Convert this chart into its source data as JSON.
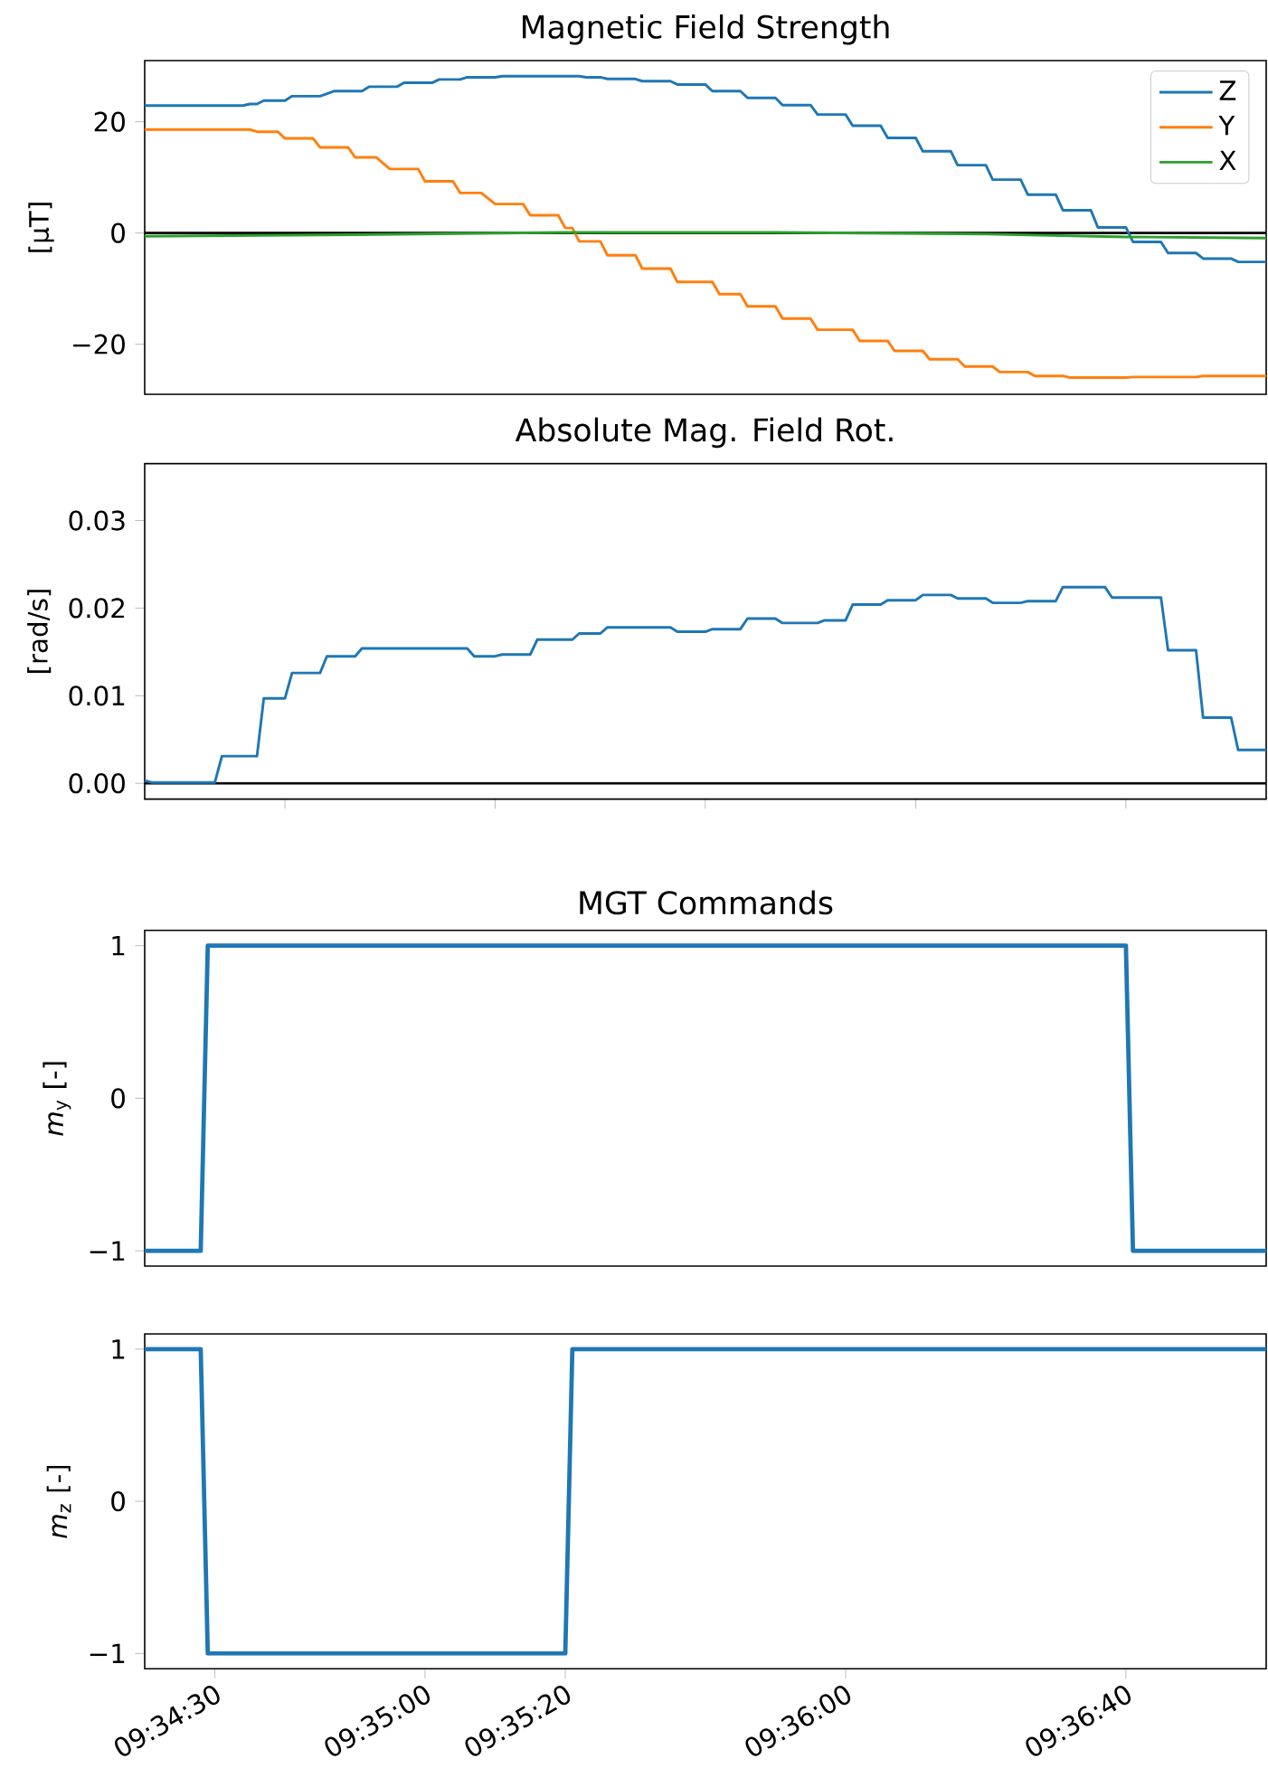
{
  "chart_data": [
    {
      "type": "line",
      "title": "Magnetic Field Strength",
      "ylabel": "[µT]",
      "xlim": [
        9.57222,
        9.61667
      ],
      "ylim": [
        -29,
        31
      ],
      "yticks": [
        {
          "value": -20,
          "label": "−20"
        },
        0,
        20
      ],
      "tick_labels": "y",
      "legend": "top right",
      "ref_lines": [
        {
          "axis": "y",
          "value": 0,
          "color": "#000000"
        }
      ],
      "series": [
        {
          "name": "Z",
          "color": "#1f77b4",
          "x": [
            9.57222,
            9.57611,
            9.57639,
            9.57667,
            9.57694,
            9.57778,
            9.57806,
            9.57917,
            9.57972,
            9.58083,
            9.58111,
            9.58222,
            9.5825,
            9.58361,
            9.58389,
            9.58472,
            9.585,
            9.58611,
            9.58639,
            9.58944,
            9.58972,
            9.59028,
            9.59056,
            9.59167,
            9.59194,
            9.59306,
            9.59333,
            9.59444,
            9.59472,
            9.59583,
            9.59611,
            9.59722,
            9.5975,
            9.59861,
            9.59889,
            9.6,
            9.60028,
            9.60139,
            9.60167,
            9.60278,
            9.60306,
            9.60417,
            9.60444,
            9.60556,
            9.60583,
            9.60694,
            9.60722,
            9.60833,
            9.60861,
            9.60972,
            9.61,
            9.61111,
            9.61139,
            9.6125,
            9.61278,
            9.61389,
            9.61417,
            9.61528,
            9.61556,
            9.61667
          ],
          "values": [
            22.9,
            22.9,
            23.2,
            23.2,
            23.8,
            23.8,
            24.6,
            24.6,
            25.5,
            25.5,
            26.3,
            26.3,
            27.0,
            27.0,
            27.6,
            27.6,
            28.0,
            28.0,
            28.2,
            28.2,
            28.0,
            28.0,
            27.7,
            27.7,
            27.3,
            27.3,
            26.7,
            26.7,
            25.5,
            25.5,
            24.3,
            24.3,
            23.0,
            23.0,
            21.3,
            21.3,
            19.3,
            19.3,
            17.1,
            17.1,
            14.7,
            14.7,
            12.2,
            12.2,
            9.6,
            9.6,
            6.9,
            6.9,
            4.1,
            4.1,
            1.0,
            1.0,
            -1.6,
            -1.6,
            -3.6,
            -3.6,
            -4.6,
            -4.6,
            -5.2,
            -5.2
          ]
        },
        {
          "name": "Y",
          "color": "#ff7f0e",
          "x": [
            9.57222,
            9.57639,
            9.57667,
            9.5775,
            9.57778,
            9.57889,
            9.57917,
            9.58028,
            9.58056,
            9.58139,
            9.58194,
            9.58306,
            9.58333,
            9.58444,
            9.58472,
            9.58556,
            9.58611,
            9.58722,
            9.5875,
            9.58861,
            9.58889,
            9.58917,
            9.58944,
            9.59028,
            9.59056,
            9.59167,
            9.59194,
            9.59306,
            9.59333,
            9.59472,
            9.595,
            9.59583,
            9.59611,
            9.59722,
            9.5975,
            9.59861,
            9.59889,
            9.60028,
            9.60056,
            9.60167,
            9.60194,
            9.60306,
            9.60333,
            9.60444,
            9.60472,
            9.60583,
            9.60611,
            9.60722,
            9.6075,
            9.60861,
            9.60889,
            9.61111,
            9.61139,
            9.61389,
            9.61417,
            9.61667
          ],
          "values": [
            18.6,
            18.6,
            18.2,
            18.2,
            17.0,
            17.0,
            15.4,
            15.4,
            13.6,
            13.6,
            11.5,
            11.5,
            9.3,
            9.3,
            7.2,
            7.2,
            5.2,
            5.2,
            3.2,
            3.2,
            0.9,
            0.9,
            -1.5,
            -1.5,
            -4.0,
            -4.0,
            -6.4,
            -6.4,
            -8.8,
            -8.8,
            -11.0,
            -11.0,
            -13.2,
            -13.2,
            -15.4,
            -15.4,
            -17.4,
            -17.4,
            -19.4,
            -19.4,
            -21.2,
            -21.2,
            -22.7,
            -22.7,
            -24.0,
            -24.0,
            -25.0,
            -25.0,
            -25.7,
            -25.7,
            -26.0,
            -26.0,
            -25.9,
            -25.9,
            -25.7,
            -25.7
          ]
        },
        {
          "name": "X",
          "color": "#2ca02c",
          "x": [
            9.57222,
            9.58056,
            9.58889,
            9.59722,
            9.60556,
            9.61111,
            9.61667
          ],
          "values": [
            -0.6,
            -0.3,
            0.1,
            0.1,
            -0.2,
            -0.7,
            -0.9
          ]
        }
      ]
    },
    {
      "type": "line",
      "title": "Absolute Mag. Field Rot.",
      "ylabel": "[rad/s]",
      "xlim": [
        9.57222,
        9.61667
      ],
      "ylim": [
        -0.0018,
        0.0365
      ],
      "xticks": [
        {
          "value": 9.57778,
          "label": null
        },
        {
          "value": 9.58611,
          "label": null
        },
        {
          "value": 9.59444,
          "label": null
        },
        {
          "value": 9.60278,
          "label": null
        },
        {
          "value": 9.61111,
          "label": null
        }
      ],
      "yticks": [
        {
          "value": 0,
          "label": "0.00"
        },
        0.01,
        0.02,
        0.03
      ],
      "tick_labels": "y",
      "ref_lines": [
        {
          "axis": "y",
          "value": 0,
          "color": "#000000"
        }
      ],
      "series": [
        {
          "color": "#1f77b4",
          "x": [
            9.57222,
            9.5725,
            9.575,
            9.57528,
            9.57667,
            9.57694,
            9.57778,
            9.57806,
            9.57917,
            9.57944,
            9.58056,
            9.58083,
            9.585,
            9.58528,
            9.58611,
            9.58639,
            9.5875,
            9.58778,
            9.58917,
            9.58944,
            9.59028,
            9.59056,
            9.59306,
            9.59333,
            9.59444,
            9.59472,
            9.59583,
            9.59611,
            9.59722,
            9.5975,
            9.59889,
            9.59917,
            9.6,
            9.60028,
            9.60139,
            9.60167,
            9.60278,
            9.60306,
            9.60417,
            9.60444,
            9.60556,
            9.60583,
            9.60694,
            9.60722,
            9.60833,
            9.60861,
            9.61028,
            9.61056,
            9.6125,
            9.61278,
            9.61389,
            9.61417,
            9.61528,
            9.61556,
            9.61667
          ],
          "values": [
            0.0003,
            0.0001,
            0.0001,
            0.0031,
            0.0031,
            0.0097,
            0.0097,
            0.0126,
            0.0126,
            0.0145,
            0.0145,
            0.0154,
            0.0154,
            0.0145,
            0.0145,
            0.0147,
            0.0147,
            0.0164,
            0.0164,
            0.0171,
            0.0171,
            0.0178,
            0.0178,
            0.0173,
            0.0173,
            0.0176,
            0.0176,
            0.0188,
            0.0188,
            0.0183,
            0.0183,
            0.0186,
            0.0186,
            0.0204,
            0.0204,
            0.0209,
            0.0209,
            0.0215,
            0.0215,
            0.0211,
            0.0211,
            0.0206,
            0.0206,
            0.0208,
            0.0208,
            0.0224,
            0.0224,
            0.0212,
            0.0212,
            0.0152,
            0.0152,
            0.0075,
            0.0075,
            0.0038,
            0.0038
          ]
        }
      ]
    },
    {
      "type": "line",
      "title": "MGT Commands",
      "ylabel": "*m*$_{y}$ [-]",
      "xlim": [
        9.57222,
        9.61667
      ],
      "ylim": [
        -1.1,
        1.1
      ],
      "yticks": [
        {
          "value": -1,
          "label": "−1"
        },
        0,
        1
      ],
      "tick_labels": "y",
      "series": [
        {
          "color": "#1f77b4",
          "x": [
            9.57222,
            9.57444,
            9.57472,
            9.61111,
            9.61139,
            9.61667
          ],
          "values": [
            -1,
            -1,
            1,
            1,
            -1,
            -1
          ]
        }
      ]
    },
    {
      "type": "line",
      "ylabel": "*m*$_{z}$ [-]",
      "xlim": [
        9.57222,
        9.61667
      ],
      "ylim": [
        -1.1,
        1.1
      ],
      "xticks": [
        {
          "value": 9.575,
          "label": "09:34:30"
        },
        {
          "value": 9.58333,
          "label": "09:35:00"
        },
        {
          "value": 9.58889,
          "label": "09:35:20"
        },
        {
          "value": 9.6,
          "label": "09:36:00"
        },
        {
          "value": 9.61111,
          "label": "09:36:40"
        }
      ],
      "yticks": [
        {
          "value": -1,
          "label": "−1"
        },
        0,
        1
      ],
      "series": [
        {
          "color": "#1f77b4",
          "x": [
            9.57222,
            9.57444,
            9.57472,
            9.58889,
            9.58917,
            9.61667
          ],
          "values": [
            1,
            1,
            -1,
            -1,
            1,
            1
          ]
        }
      ]
    }
  ]
}
